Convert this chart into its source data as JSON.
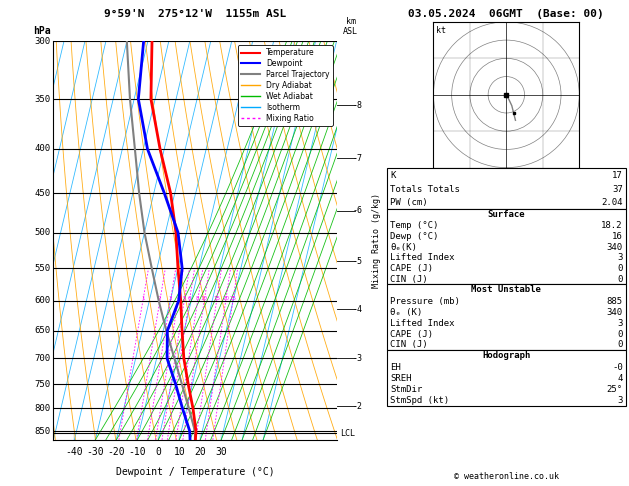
{
  "title_left": "9°59'N  275°12'W  1155m ASL",
  "title_right": "03.05.2024  06GMT  (Base: 00)",
  "xlabel": "Dewpoint / Temperature (°C)",
  "ylabel_left": "hPa",
  "station_info": {
    "K": 17,
    "Totals_Totals": 37,
    "PW_cm": 2.04,
    "Surface_Temp": 18.2,
    "Surface_Dewp": 16,
    "Surface_theta_e": 340,
    "Surface_Lifted_Index": 3,
    "Surface_CAPE": 0,
    "Surface_CIN": 0,
    "MU_Pressure_mb": 885,
    "MU_theta_e": 340,
    "MU_Lifted_Index": 3,
    "MU_CAPE": 0,
    "MU_CIN": 0,
    "EH": "-0",
    "SREH": 4,
    "StmDir": "25°",
    "StmSpd_kt": 3
  },
  "pressure_levels": [
    300,
    350,
    400,
    450,
    500,
    550,
    600,
    650,
    700,
    750,
    800,
    850
  ],
  "pres_min": 300,
  "pres_max": 870,
  "temp_min": -45,
  "temp_max": 35,
  "skew_factor": 45.0,
  "temp_data": {
    "pressure": [
      885,
      850,
      800,
      750,
      700,
      650,
      600,
      550,
      500,
      450,
      400,
      350,
      300
    ],
    "temperature": [
      18.2,
      17.0,
      13.0,
      8.0,
      3.0,
      -1.0,
      -5.0,
      -10.0,
      -15.0,
      -22.0,
      -32.0,
      -42.0,
      -48.0
    ]
  },
  "dewp_data": {
    "pressure": [
      885,
      850,
      800,
      750,
      700,
      650,
      600,
      550,
      500,
      450,
      400,
      350,
      300
    ],
    "dewpoint": [
      16.0,
      14.0,
      8.0,
      2.0,
      -5.0,
      -8.0,
      -6.0,
      -8.0,
      -14.0,
      -25.0,
      -38.0,
      -48.0,
      -52.0
    ]
  },
  "parcel_data": {
    "pressure": [
      885,
      850,
      800,
      750,
      700,
      650,
      600,
      550,
      500,
      450,
      400,
      350,
      300
    ],
    "temperature": [
      18.2,
      16.5,
      11.0,
      5.0,
      -1.5,
      -8.5,
      -15.5,
      -22.5,
      -30.0,
      -37.0,
      -44.0,
      -52.0,
      -60.0
    ]
  },
  "lcl_pressure": 855,
  "colors": {
    "temperature": "#ff0000",
    "dewpoint": "#0000ff",
    "parcel": "#808080",
    "dry_adiabat": "#ffa500",
    "wet_adiabat": "#00bb00",
    "isotherm": "#00aaff",
    "mixing_ratio": "#ff00ff",
    "background": "#ffffff",
    "grid": "#000000"
  },
  "mixing_ratio_lines": [
    1,
    2,
    3,
    4,
    5,
    6,
    8,
    10,
    15,
    20,
    25
  ],
  "km_ticks": {
    "2": 795,
    "3": 700,
    "4": 614,
    "5": 540,
    "6": 472,
    "7": 410,
    "8": 356
  },
  "copyright": "© weatheronline.co.uk"
}
